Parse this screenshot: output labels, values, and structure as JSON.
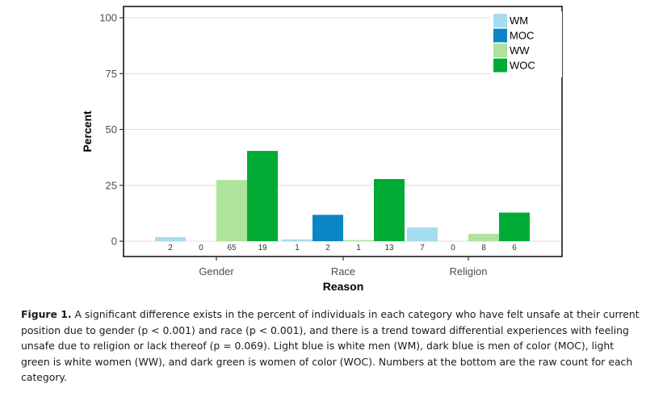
{
  "chart_data": {
    "type": "bar",
    "title": "",
    "xlabel": "Reason",
    "ylabel": "Percent",
    "ylim": [
      0,
      100
    ],
    "yticks": [
      0,
      25,
      50,
      75,
      100
    ],
    "grid": true,
    "legend_position": "top-right",
    "categories": [
      "Gender",
      "Race",
      "Religion"
    ],
    "series": [
      {
        "name": "WM",
        "color": "#a6dcef",
        "values": [
          1.8,
          0.8,
          6.2
        ],
        "counts": [
          "2",
          "1",
          "7"
        ]
      },
      {
        "name": "MOC",
        "color": "#0a86c4",
        "values": [
          0,
          11.8,
          0
        ],
        "counts": [
          "0",
          "2",
          "0"
        ]
      },
      {
        "name": "WW",
        "color": "#ade39b",
        "values": [
          27.4,
          0.5,
          3.3
        ],
        "counts": [
          "65",
          "1",
          "8"
        ]
      },
      {
        "name": "WOC",
        "color": "#00ab33",
        "values": [
          40.4,
          27.8,
          12.8
        ],
        "counts": [
          "19",
          "13",
          "6"
        ]
      }
    ]
  },
  "caption": {
    "label": "Figure 1.",
    "text": "A significant difference exists in the percent of individuals in each category who have felt unsafe at their current position due to gender (p < 0.001) and race (p < 0.001), and there is a trend toward differential experiences with feeling unsafe due to religion or lack thereof (p = 0.069). Light blue is white men (WM), dark blue is men of color (MOC), light green is white women (WW), and dark green is women of color (WOC). Numbers at the bottom are the raw count for each category."
  }
}
